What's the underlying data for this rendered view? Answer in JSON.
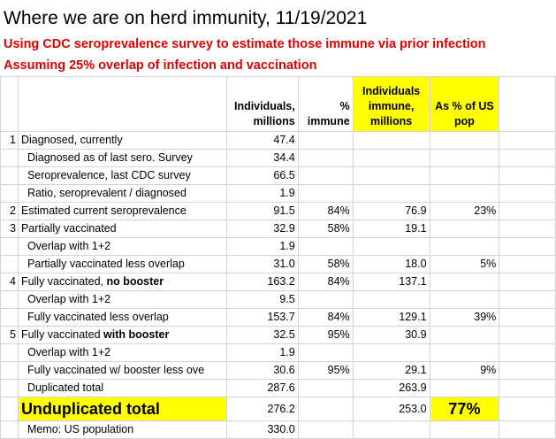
{
  "title": "Where we are on herd immunity, 11/19/2021",
  "subtitle1": "Using CDC seroprevalence survey to estimate those immune via prior infection",
  "subtitle2": "Assuming 25% overlap of infection and vaccination",
  "headers": {
    "individuals": "Individuals, millions",
    "pct_immune": "% immune",
    "immune_millions": "Individuals immune, millions",
    "pct_us_pop": "As % of US pop"
  },
  "rows": [
    {
      "idx": "1",
      "label": "Diagnosed, currently",
      "ind": "47.4",
      "pct": "",
      "imm": "",
      "us": ""
    },
    {
      "idx": "",
      "label": "Diagnosed as of last sero. Survey",
      "ind": "34.4",
      "pct": "",
      "imm": "",
      "us": ""
    },
    {
      "idx": "",
      "label": "Seroprevalence, last CDC survey",
      "ind": "66.5",
      "pct": "",
      "imm": "",
      "us": ""
    },
    {
      "idx": "",
      "label": "Ratio, seroprevalent / diagnosed",
      "ind": "1.9",
      "pct": "",
      "imm": "",
      "us": ""
    },
    {
      "idx": "2",
      "label": "Estimated current seroprevalence",
      "ind": "91.5",
      "pct": "84%",
      "imm": "76.9",
      "us": "23%"
    },
    {
      "idx": "3",
      "label": "Partially vaccinated",
      "ind": "32.9",
      "pct": "58%",
      "imm": "19.1",
      "us": ""
    },
    {
      "idx": "",
      "label": "Overlap with 1+2",
      "ind": "1.9",
      "pct": "",
      "imm": "",
      "us": ""
    },
    {
      "idx": "",
      "label": "Partially vaccinated less overlap",
      "ind": "31.0",
      "pct": "58%",
      "imm": "18.0",
      "us": "5%"
    },
    {
      "idx": "4",
      "label": "Fully vaccinated, ",
      "label_bold": "no booster",
      "ind": "163.2",
      "pct": "84%",
      "imm": "137.1",
      "us": ""
    },
    {
      "idx": "",
      "label": "Overlap with 1+2",
      "ind": "9.5",
      "pct": "",
      "imm": "",
      "us": ""
    },
    {
      "idx": "",
      "label": "Fully  vaccinated less overlap",
      "ind": "153.7",
      "pct": "84%",
      "imm": "129.1",
      "us": "39%"
    },
    {
      "idx": "5",
      "label": "Fully vaccinated ",
      "label_bold": "with booster",
      "ind": "32.5",
      "pct": "95%",
      "imm": "30.9",
      "us": ""
    },
    {
      "idx": "",
      "label": "Overlap with 1+2",
      "ind": "1.9",
      "pct": "",
      "imm": "",
      "us": ""
    },
    {
      "idx": "",
      "label": "Fully  vaccinated w/ booster less ove",
      "ind": "30.6",
      "pct": "95%",
      "imm": "29.1",
      "us": "9%"
    },
    {
      "idx": "",
      "label": "Duplicated total",
      "ind": "287.6",
      "pct": "",
      "imm": "263.9",
      "us": ""
    }
  ],
  "total": {
    "label": "Unduplicated total",
    "ind": "276.2",
    "imm": "253.0",
    "us": "77%"
  },
  "memo": {
    "label": "Memo:  US population",
    "ind": "330.0"
  },
  "colors": {
    "highlight": "#ffff00",
    "subtitle_red": "#e00000"
  }
}
